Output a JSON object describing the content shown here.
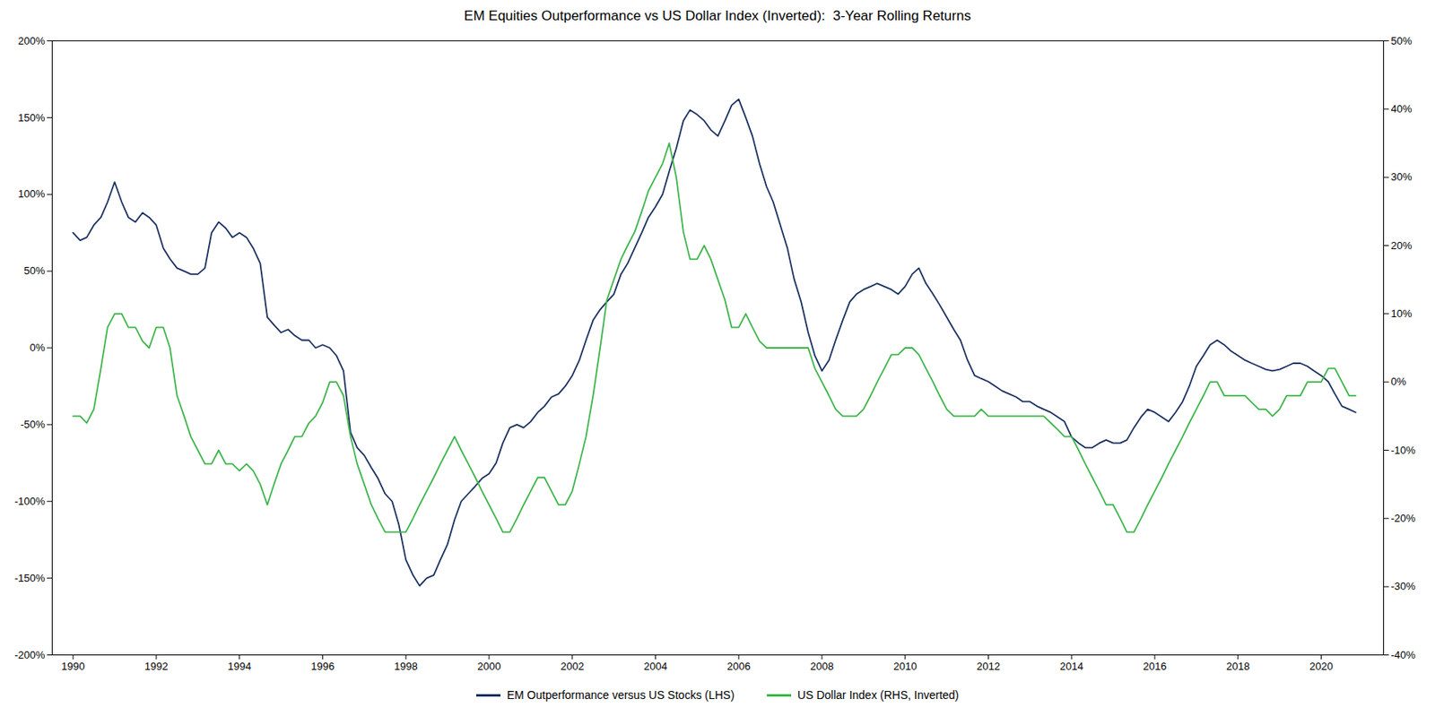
{
  "chart_data": {
    "type": "line",
    "title": "EM Equities Outperformance vs US Dollar Index (Inverted):  3-Year Rolling Returns",
    "x": [
      1990.0,
      1990.17,
      1990.33,
      1990.5,
      1990.67,
      1990.83,
      1991.0,
      1991.17,
      1991.33,
      1991.5,
      1991.67,
      1991.83,
      1992.0,
      1992.17,
      1992.33,
      1992.5,
      1992.67,
      1992.83,
      1993.0,
      1993.17,
      1993.33,
      1993.5,
      1993.67,
      1993.83,
      1994.0,
      1994.17,
      1994.33,
      1994.5,
      1994.67,
      1994.83,
      1995.0,
      1995.17,
      1995.33,
      1995.5,
      1995.67,
      1995.83,
      1996.0,
      1996.17,
      1996.33,
      1996.5,
      1996.67,
      1996.83,
      1997.0,
      1997.17,
      1997.33,
      1997.5,
      1997.67,
      1997.83,
      1998.0,
      1998.17,
      1998.33,
      1998.5,
      1998.67,
      1998.83,
      1999.0,
      1999.17,
      1999.33,
      1999.5,
      1999.67,
      1999.83,
      2000.0,
      2000.17,
      2000.33,
      2000.5,
      2000.67,
      2000.83,
      2001.0,
      2001.17,
      2001.33,
      2001.5,
      2001.67,
      2001.83,
      2002.0,
      2002.17,
      2002.33,
      2002.5,
      2002.67,
      2002.83,
      2003.0,
      2003.17,
      2003.33,
      2003.5,
      2003.67,
      2003.83,
      2004.0,
      2004.17,
      2004.33,
      2004.5,
      2004.67,
      2004.83,
      2005.0,
      2005.17,
      2005.33,
      2005.5,
      2005.67,
      2005.83,
      2006.0,
      2006.17,
      2006.33,
      2006.5,
      2006.67,
      2006.83,
      2007.0,
      2007.17,
      2007.33,
      2007.5,
      2007.67,
      2007.83,
      2008.0,
      2008.17,
      2008.33,
      2008.5,
      2008.67,
      2008.83,
      2009.0,
      2009.17,
      2009.33,
      2009.5,
      2009.67,
      2009.83,
      2010.0,
      2010.17,
      2010.33,
      2010.5,
      2010.67,
      2010.83,
      2011.0,
      2011.17,
      2011.33,
      2011.5,
      2011.67,
      2011.83,
      2012.0,
      2012.17,
      2012.33,
      2012.5,
      2012.67,
      2012.83,
      2013.0,
      2013.17,
      2013.33,
      2013.5,
      2013.67,
      2013.83,
      2014.0,
      2014.17,
      2014.33,
      2014.5,
      2014.67,
      2014.83,
      2015.0,
      2015.17,
      2015.33,
      2015.5,
      2015.67,
      2015.83,
      2016.0,
      2016.17,
      2016.33,
      2016.5,
      2016.67,
      2016.83,
      2017.0,
      2017.17,
      2017.33,
      2017.5,
      2017.67,
      2017.83,
      2018.0,
      2018.17,
      2018.33,
      2018.5,
      2018.67,
      2018.83,
      2019.0,
      2019.17,
      2019.33,
      2019.5,
      2019.67,
      2019.83,
      2020.0,
      2020.17,
      2020.33,
      2020.5,
      2020.67,
      2020.83
    ],
    "series": [
      {
        "name": "EM Outperformance versus US Stocks (LHS)",
        "color": "#1a3060",
        "values": [
          75,
          70,
          72,
          80,
          85,
          95,
          108,
          95,
          85,
          82,
          88,
          85,
          80,
          65,
          58,
          52,
          50,
          48,
          48,
          52,
          75,
          82,
          78,
          72,
          75,
          72,
          65,
          55,
          20,
          15,
          10,
          12,
          8,
          5,
          5,
          0,
          2,
          0,
          -5,
          -15,
          -55,
          -65,
          -70,
          -78,
          -85,
          -95,
          -100,
          -115,
          -138,
          -148,
          -155,
          -150,
          -148,
          -138,
          -128,
          -112,
          -100,
          -95,
          -90,
          -85,
          -82,
          -75,
          -62,
          -52,
          -50,
          -52,
          -48,
          -42,
          -38,
          -32,
          -30,
          -25,
          -18,
          -8,
          5,
          18,
          25,
          30,
          35,
          48,
          55,
          65,
          75,
          85,
          92,
          100,
          115,
          130,
          148,
          155,
          152,
          148,
          142,
          138,
          148,
          158,
          162,
          150,
          138,
          120,
          105,
          95,
          80,
          65,
          45,
          30,
          10,
          -5,
          -15,
          -8,
          5,
          18,
          30,
          35,
          38,
          40,
          42,
          40,
          38,
          35,
          40,
          48,
          52,
          42,
          35,
          28,
          20,
          12,
          5,
          -8,
          -18,
          -20,
          -22,
          -25,
          -28,
          -30,
          -32,
          -35,
          -35,
          -38,
          -40,
          -42,
          -45,
          -48,
          -58,
          -62,
          -65,
          -65,
          -62,
          -60,
          -62,
          -62,
          -60,
          -52,
          -45,
          -40,
          -42,
          -45,
          -48,
          -42,
          -35,
          -25,
          -12,
          -5,
          2,
          5,
          2,
          -2,
          -5,
          -8,
          -10,
          -12,
          -14,
          -15,
          -14,
          -12,
          -10,
          -10,
          -12,
          -15,
          -18,
          -22,
          -30,
          -38,
          -40,
          -42
        ]
      },
      {
        "name": "US Dollar Index (RHS, Inverted)",
        "color": "#3cb54a",
        "axis": "y2",
        "values": [
          -5,
          -5,
          -6,
          -4,
          2,
          8,
          10,
          10,
          8,
          8,
          6,
          5,
          8,
          8,
          5,
          -2,
          -5,
          -8,
          -10,
          -12,
          -12,
          -10,
          -12,
          -12,
          -13,
          -12,
          -13,
          -15,
          -18,
          -15,
          -12,
          -10,
          -8,
          -8,
          -6,
          -5,
          -3,
          0,
          0,
          -2,
          -8,
          -12,
          -15,
          -18,
          -20,
          -22,
          -22,
          -22,
          -22,
          -20,
          -18,
          -16,
          -14,
          -12,
          -10,
          -8,
          -10,
          -12,
          -14,
          -16,
          -18,
          -20,
          -22,
          -22,
          -20,
          -18,
          -16,
          -14,
          -14,
          -16,
          -18,
          -18,
          -16,
          -12,
          -8,
          -2,
          5,
          12,
          15,
          18,
          20,
          22,
          25,
          28,
          30,
          32,
          35,
          30,
          22,
          18,
          18,
          20,
          18,
          15,
          12,
          8,
          8,
          10,
          8,
          6,
          5,
          5,
          5,
          5,
          5,
          5,
          5,
          2,
          0,
          -2,
          -4,
          -5,
          -5,
          -5,
          -4,
          -2,
          0,
          2,
          4,
          4,
          5,
          5,
          4,
          2,
          0,
          -2,
          -4,
          -5,
          -5,
          -5,
          -5,
          -4,
          -5,
          -5,
          -5,
          -5,
          -5,
          -5,
          -5,
          -5,
          -5,
          -6,
          -7,
          -8,
          -8,
          -10,
          -12,
          -14,
          -16,
          -18,
          -18,
          -20,
          -22,
          -22,
          -20,
          -18,
          -16,
          -14,
          -12,
          -10,
          -8,
          -6,
          -4,
          -2,
          0,
          0,
          -2,
          -2,
          -2,
          -2,
          -3,
          -4,
          -4,
          -5,
          -4,
          -2,
          -2,
          -2,
          0,
          0,
          0,
          2,
          2,
          0,
          -2,
          -2
        ]
      }
    ],
    "xlim": [
      1989.5,
      2021.5
    ],
    "xticks": [
      1990,
      1992,
      1994,
      1996,
      1998,
      2000,
      2002,
      2004,
      2006,
      2008,
      2010,
      2012,
      2014,
      2016,
      2018,
      2020
    ],
    "ylim": [
      -200,
      200
    ],
    "yticks": [
      {
        "value": -200,
        "label": "-200%"
      },
      {
        "value": -150,
        "label": "-150%"
      },
      {
        "value": -100,
        "label": "-100%"
      },
      {
        "value": -50,
        "label": "-50%"
      },
      {
        "value": 0,
        "label": "0%"
      },
      {
        "value": 50,
        "label": "50%"
      },
      {
        "value": 100,
        "label": "100%"
      },
      {
        "value": 150,
        "label": "150%"
      },
      {
        "value": 200,
        "label": "200%"
      }
    ],
    "y2lim": [
      -40,
      50
    ],
    "y2ticks": [
      {
        "value": -40,
        "label": "-40%"
      },
      {
        "value": -30,
        "label": "-30%"
      },
      {
        "value": -20,
        "label": "-20%"
      },
      {
        "value": -10,
        "label": "-10%"
      },
      {
        "value": 0,
        "label": "0%"
      },
      {
        "value": 10,
        "label": "10%"
      },
      {
        "value": 20,
        "label": "20%"
      },
      {
        "value": 30,
        "label": "30%"
      },
      {
        "value": 40,
        "label": "40%"
      },
      {
        "value": 50,
        "label": "50%"
      }
    ],
    "grid": false,
    "legend": "bottom"
  }
}
